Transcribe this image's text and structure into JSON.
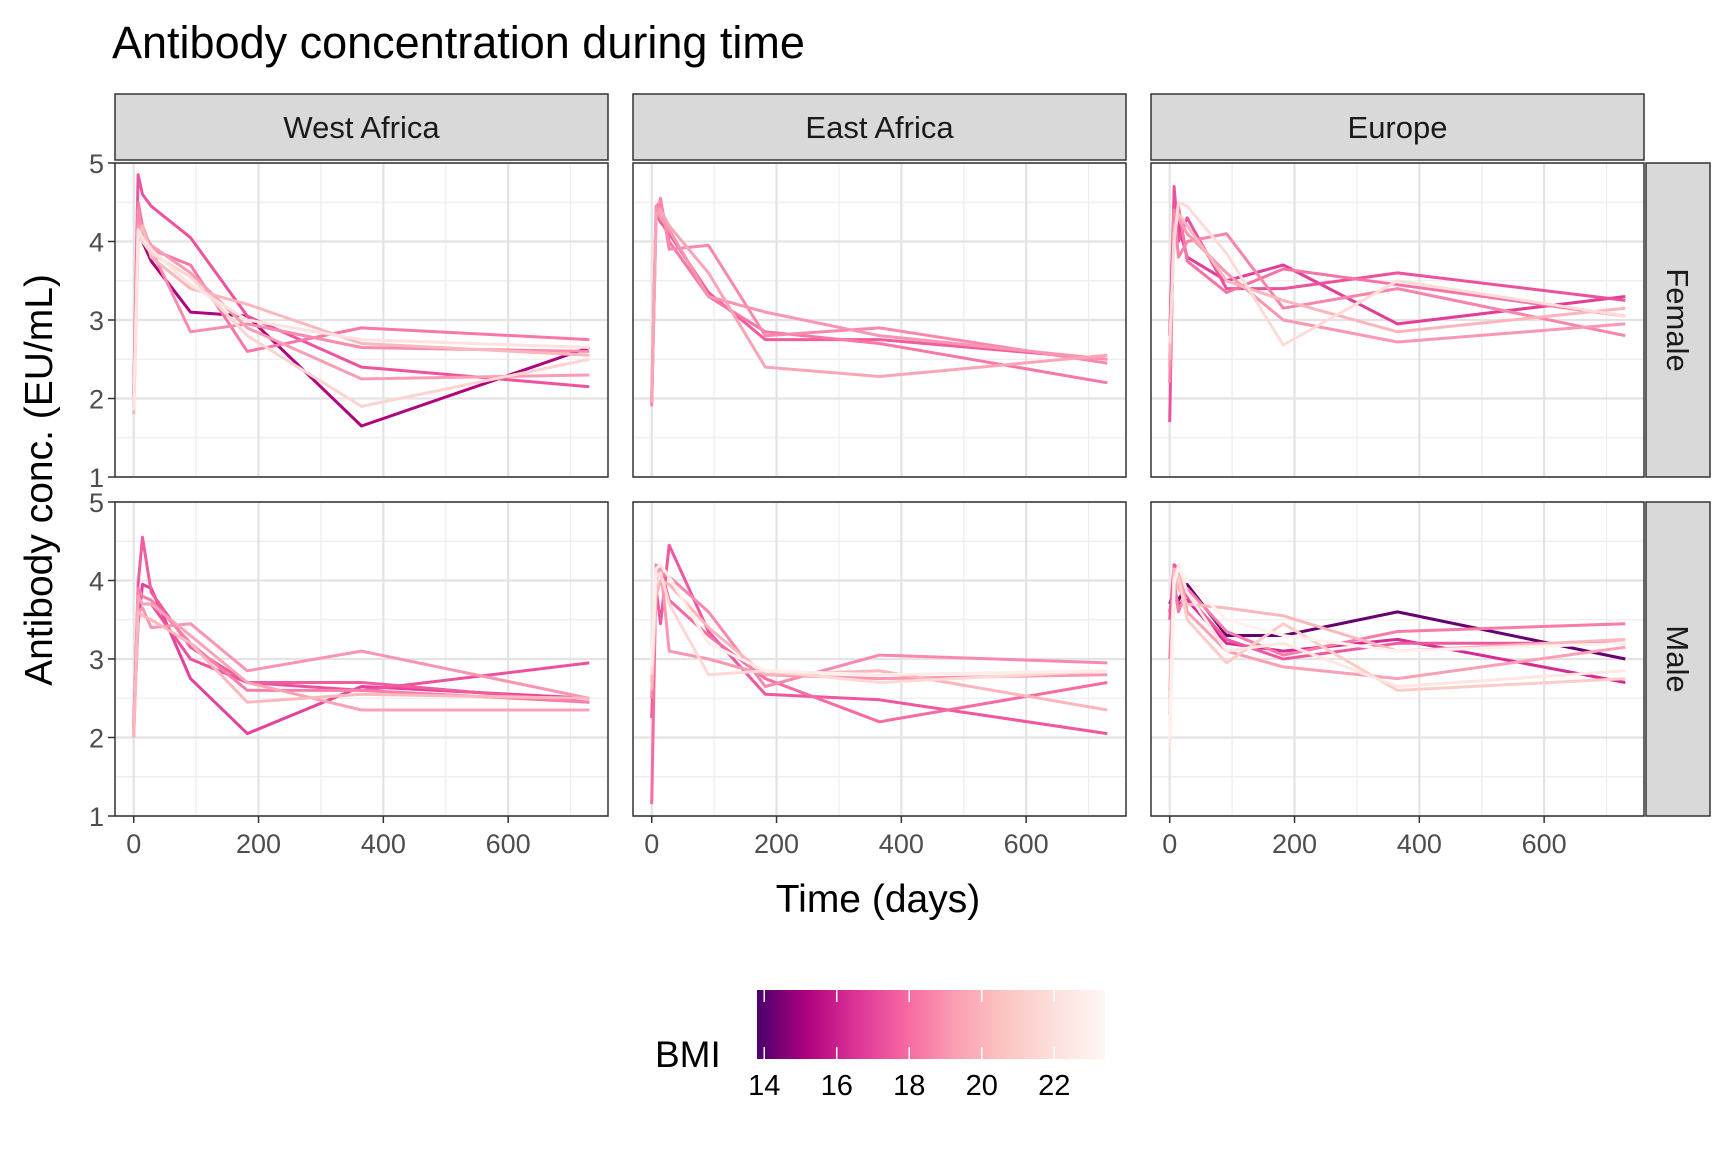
{
  "chart_data": {
    "type": "line",
    "title": "Antibody concentration during time",
    "xlabel": "Time (days)",
    "ylabel": "Antibody conc. (EU/mL)",
    "xlim": [
      -30,
      760
    ],
    "ylim": [
      1,
      5
    ],
    "x_ticks": [
      0,
      200,
      400,
      600
    ],
    "y_ticks": [
      1,
      2,
      3,
      4,
      5
    ],
    "grid": true,
    "facet_cols": [
      "West Africa",
      "East Africa",
      "Europe"
    ],
    "facet_rows": [
      "Female",
      "Male"
    ],
    "legend": {
      "title": "BMI",
      "position": "bottom",
      "range": [
        13.8,
        23.4
      ],
      "ticks": [
        14,
        16,
        18,
        20,
        22
      ],
      "colors": [
        "#49006a",
        "#ae017e",
        "#dd3497",
        "#f768a1",
        "#fa9fb5",
        "#fcc5c0",
        "#fde0dd",
        "#fff7f3"
      ]
    },
    "panels": [
      {
        "col": "West Africa",
        "row": "Female",
        "series": [
          {
            "bmi": 15.2,
            "x": [
              0,
              7,
              14,
              28,
              91,
              182,
              365,
              730
            ],
            "y": [
              2.05,
              4.3,
              4.0,
              3.75,
              3.1,
              3.05,
              1.65,
              2.65
            ]
          },
          {
            "bmi": 17.4,
            "x": [
              0,
              7,
              14,
              28,
              91,
              182,
              365,
              730
            ],
            "y": [
              2.1,
              4.85,
              4.6,
              4.45,
              4.05,
              3.05,
              2.4,
              2.15
            ]
          },
          {
            "bmi": 18.3,
            "x": [
              0,
              7,
              14,
              28,
              91,
              182,
              365,
              730
            ],
            "y": [
              2.0,
              4.5,
              4.2,
              3.9,
              3.7,
              2.6,
              2.9,
              2.75
            ]
          },
          {
            "bmi": 18.8,
            "x": [
              0,
              7,
              14,
              28,
              91,
              182,
              365,
              730
            ],
            "y": [
              1.9,
              4.4,
              4.1,
              3.9,
              2.85,
              2.95,
              2.65,
              2.6
            ]
          },
          {
            "bmi": 19.2,
            "x": [
              0,
              7,
              14,
              28,
              91,
              182,
              365,
              730
            ],
            "y": [
              2.0,
              4.2,
              4.15,
              3.95,
              3.6,
              2.9,
              2.25,
              2.3
            ]
          },
          {
            "bmi": 20.2,
            "x": [
              0,
              7,
              14,
              28,
              91,
              182,
              365,
              730
            ],
            "y": [
              1.8,
              4.0,
              4.2,
              3.8,
              3.4,
              3.2,
              2.7,
              2.55
            ]
          },
          {
            "bmi": 21.4,
            "x": [
              0,
              7,
              14,
              28,
              91,
              182,
              365,
              730
            ],
            "y": [
              1.9,
              4.1,
              4.0,
              3.85,
              3.55,
              2.8,
              1.9,
              2.5
            ]
          },
          {
            "bmi": 22.2,
            "x": [
              0,
              7,
              14,
              28,
              91,
              182,
              365,
              730
            ],
            "y": [
              1.85,
              4.15,
              4.05,
              3.9,
              3.45,
              3.0,
              2.75,
              2.65
            ]
          }
        ]
      },
      {
        "col": "East Africa",
        "row": "Female",
        "series": [
          {
            "bmi": 17.6,
            "x": [
              0,
              7,
              14,
              28,
              91,
              182,
              365,
              730
            ],
            "y": [
              1.95,
              4.35,
              4.25,
              4.1,
              3.35,
              2.75,
              2.75,
              2.5
            ]
          },
          {
            "bmi": 18.3,
            "x": [
              0,
              7,
              14,
              28,
              91,
              182,
              365,
              730
            ],
            "y": [
              2.0,
              4.45,
              4.5,
              4.0,
              3.3,
              2.85,
              2.7,
              2.2
            ]
          },
          {
            "bmi": 18.7,
            "x": [
              0,
              7,
              14,
              28,
              91,
              182,
              365,
              730
            ],
            "y": [
              1.9,
              4.3,
              4.55,
              3.9,
              3.95,
              2.8,
              2.9,
              2.45
            ]
          },
          {
            "bmi": 19.0,
            "x": [
              0,
              7,
              14,
              28,
              91,
              182,
              365,
              730
            ],
            "y": [
              2.0,
              4.45,
              4.3,
              4.15,
              3.3,
              3.1,
              2.8,
              2.5
            ]
          },
          {
            "bmi": 19.5,
            "x": [
              0,
              7,
              14,
              28,
              91,
              182,
              365,
              730
            ],
            "y": [
              1.95,
              4.35,
              4.4,
              4.2,
              3.6,
              2.4,
              2.28,
              2.55
            ]
          }
        ]
      },
      {
        "col": "Europe",
        "row": "Female",
        "series": [
          {
            "bmi": 16.8,
            "x": [
              0,
              7,
              14,
              28,
              91,
              182,
              365,
              730
            ],
            "y": [
              2.8,
              4.55,
              4.2,
              3.8,
              3.5,
              3.7,
              2.95,
              3.3
            ]
          },
          {
            "bmi": 17.3,
            "x": [
              0,
              7,
              14,
              28,
              91,
              182,
              365,
              730
            ],
            "y": [
              1.7,
              4.7,
              4.0,
              4.3,
              3.4,
              3.4,
              3.6,
              3.25
            ]
          },
          {
            "bmi": 18.2,
            "x": [
              0,
              7,
              14,
              28,
              91,
              182,
              365,
              730
            ],
            "y": [
              2.5,
              4.3,
              4.45,
              3.75,
              3.35,
              3.65,
              3.45,
              3.05
            ]
          },
          {
            "bmi": 18.6,
            "x": [
              0,
              7,
              14,
              28,
              91,
              182,
              365,
              730
            ],
            "y": [
              2.2,
              4.4,
              3.8,
              4.0,
              4.1,
              3.15,
              3.4,
              2.8
            ]
          },
          {
            "bmi": 19.1,
            "x": [
              0,
              7,
              14,
              28,
              91,
              182,
              365,
              730
            ],
            "y": [
              2.4,
              4.2,
              4.3,
              4.1,
              3.6,
              3.0,
              2.72,
              2.95
            ]
          },
          {
            "bmi": 20.1,
            "x": [
              0,
              7,
              14,
              28,
              91,
              182,
              365,
              730
            ],
            "y": [
              2.5,
              4.1,
              4.35,
              4.2,
              3.5,
              3.25,
              2.85,
              3.15
            ]
          },
          {
            "bmi": 21.8,
            "x": [
              0,
              7,
              14,
              28,
              91,
              182,
              365,
              730
            ],
            "y": [
              2.7,
              4.0,
              4.5,
              4.45,
              3.85,
              2.68,
              3.5,
              3.05
            ]
          }
        ]
      },
      {
        "col": "West Africa",
        "row": "Male",
        "series": [
          {
            "bmi": 16.9,
            "x": [
              0,
              7,
              14,
              28,
              91,
              182,
              365,
              730
            ],
            "y": [
              2.15,
              3.45,
              3.95,
              3.9,
              2.75,
              2.05,
              2.65,
              2.5
            ]
          },
          {
            "bmi": 17.3,
            "x": [
              0,
              7,
              14,
              28,
              91,
              182,
              365,
              730
            ],
            "y": [
              2.2,
              3.7,
              3.7,
              3.7,
              3.0,
              2.7,
              2.6,
              2.95
            ]
          },
          {
            "bmi": 17.6,
            "x": [
              0,
              7,
              14,
              28,
              91,
              182,
              365,
              730
            ],
            "y": [
              2.1,
              3.95,
              4.55,
              3.85,
              3.15,
              2.7,
              2.7,
              2.45
            ]
          },
          {
            "bmi": 18.5,
            "x": [
              0,
              7,
              14,
              28,
              91,
              182,
              365,
              730
            ],
            "y": [
              2.0,
              3.9,
              3.8,
              3.75,
              3.2,
              2.6,
              2.6,
              2.45
            ]
          },
          {
            "bmi": 19.0,
            "x": [
              0,
              7,
              14,
              28,
              91,
              182,
              365,
              730
            ],
            "y": [
              2.0,
              3.6,
              3.65,
              3.4,
              3.45,
              2.85,
              3.1,
              2.5
            ]
          },
          {
            "bmi": 19.4,
            "x": [
              0,
              7,
              14,
              28,
              91,
              182,
              365,
              730
            ],
            "y": [
              2.05,
              3.8,
              3.7,
              3.7,
              3.3,
              2.7,
              2.35,
              2.35
            ]
          },
          {
            "bmi": 20.2,
            "x": [
              0,
              7,
              14,
              28,
              91,
              182,
              365,
              730
            ],
            "y": [
              2.0,
              3.6,
              3.55,
              3.5,
              3.2,
              2.45,
              2.55,
              2.5
            ]
          }
        ]
      },
      {
        "col": "East Africa",
        "row": "Male",
        "series": [
          {
            "bmi": 17.5,
            "x": [
              0,
              7,
              14,
              28,
              91,
              182,
              365,
              730
            ],
            "y": [
              2.25,
              3.9,
              3.45,
              4.45,
              3.35,
              2.55,
              2.48,
              2.05
            ]
          },
          {
            "bmi": 18.0,
            "x": [
              0,
              7,
              14,
              28,
              91,
              182,
              365,
              730
            ],
            "y": [
              1.15,
              4.1,
              4.15,
              3.75,
              3.3,
              2.75,
              2.2,
              2.7
            ]
          },
          {
            "bmi": 18.7,
            "x": [
              0,
              7,
              14,
              28,
              91,
              182,
              365,
              730
            ],
            "y": [
              2.5,
              4.2,
              4.1,
              4.05,
              3.6,
              2.65,
              3.05,
              2.95
            ]
          },
          {
            "bmi": 19.1,
            "x": [
              0,
              7,
              14,
              28,
              91,
              182,
              365,
              730
            ],
            "y": [
              2.7,
              4.0,
              4.2,
              3.1,
              3.0,
              2.8,
              2.75,
              2.8
            ]
          },
          {
            "bmi": 20.1,
            "x": [
              0,
              7,
              14,
              28,
              91,
              182,
              365,
              730
            ],
            "y": [
              2.6,
              3.8,
              4.0,
              3.95,
              3.4,
              2.8,
              2.85,
              2.35
            ]
          },
          {
            "bmi": 21.6,
            "x": [
              0,
              7,
              14,
              28,
              91,
              182,
              365,
              730
            ],
            "y": [
              2.8,
              4.05,
              4.1,
              3.7,
              2.8,
              2.85,
              2.7,
              2.85
            ]
          },
          {
            "bmi": 22.8,
            "x": [
              0,
              7,
              14,
              28,
              91,
              182,
              365,
              730
            ],
            "y": [
              2.9,
              4.15,
              4.2,
              4.05,
              3.2,
              2.85,
              2.8,
              2.85
            ]
          }
        ]
      },
      {
        "col": "Europe",
        "row": "Male",
        "series": [
          {
            "bmi": 14.2,
            "x": [
              0,
              7,
              14,
              28,
              91,
              182,
              365,
              730
            ],
            "y": [
              3.7,
              3.85,
              3.75,
              3.95,
              3.3,
              3.3,
              3.6,
              3.0
            ]
          },
          {
            "bmi": 16.3,
            "x": [
              0,
              7,
              14,
              28,
              91,
              182,
              365,
              730
            ],
            "y": [
              3.6,
              3.9,
              3.7,
              3.75,
              3.2,
              3.1,
              3.25,
              2.7
            ]
          },
          {
            "bmi": 17.5,
            "x": [
              0,
              7,
              14,
              28,
              91,
              182,
              365,
              730
            ],
            "y": [
              3.5,
              4.2,
              4.15,
              3.8,
              3.25,
              3.0,
              3.2,
              3.2
            ]
          },
          {
            "bmi": 18.4,
            "x": [
              0,
              7,
              14,
              28,
              91,
              182,
              365,
              730
            ],
            "y": [
              3.0,
              4.0,
              3.6,
              3.9,
              3.35,
              3.05,
              3.35,
              3.45
            ]
          },
          {
            "bmi": 19.3,
            "x": [
              0,
              7,
              14,
              28,
              91,
              182,
              365,
              730
            ],
            "y": [
              2.6,
              3.8,
              4.2,
              3.6,
              3.1,
              2.9,
              2.75,
              3.15
            ]
          },
          {
            "bmi": 20.2,
            "x": [
              0,
              7,
              14,
              28,
              91,
              182,
              365,
              730
            ],
            "y": [
              2.5,
              4.15,
              3.9,
              3.7,
              3.65,
              3.55,
              3.1,
              3.25
            ]
          },
          {
            "bmi": 21.0,
            "x": [
              0,
              7,
              14,
              28,
              91,
              182,
              365,
              730
            ],
            "y": [
              2.3,
              4.1,
              4.05,
              3.5,
              2.95,
              3.45,
              2.6,
              2.75
            ]
          },
          {
            "bmi": 22.4,
            "x": [
              0,
              7,
              14,
              28,
              91,
              182,
              365,
              730
            ],
            "y": [
              1.85,
              3.95,
              4.2,
              3.85,
              3.1,
              3.2,
              2.65,
              2.85
            ]
          },
          {
            "bmi": 23.1,
            "x": [
              0,
              7,
              14,
              28,
              91,
              182,
              365,
              730
            ],
            "y": [
              2.0,
              4.0,
              4.15,
              4.0,
              3.5,
              3.3,
              3.1,
              3.2
            ]
          }
        ]
      }
    ]
  }
}
